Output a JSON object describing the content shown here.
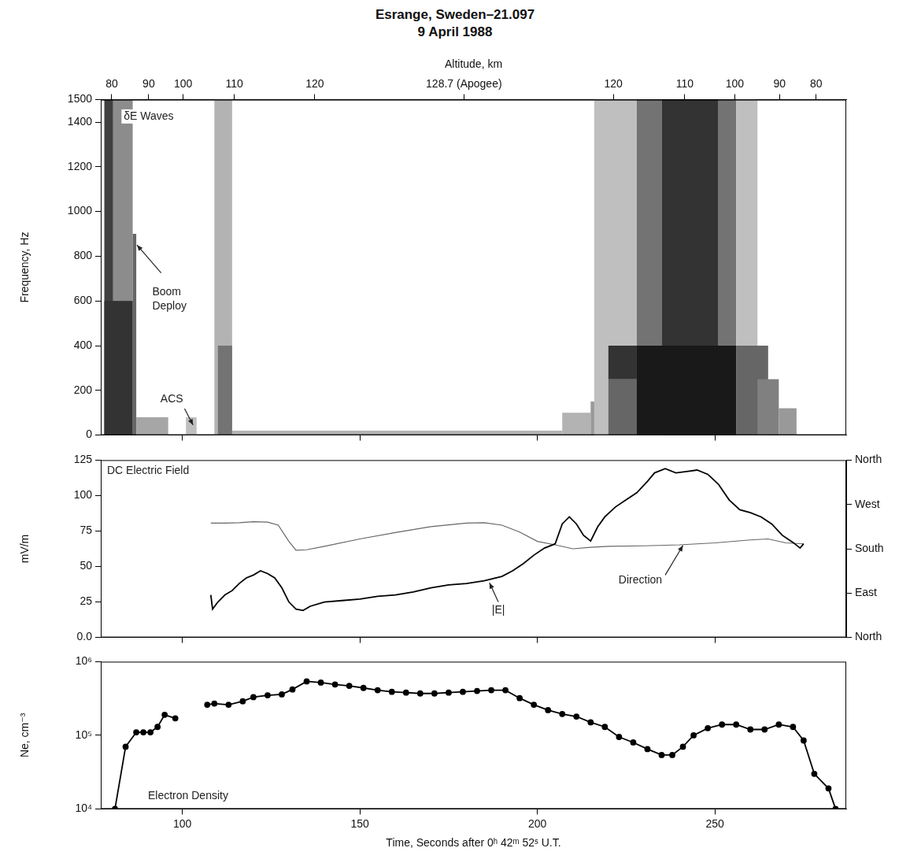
{
  "title": "Esrange, Sweden–21.097",
  "subtitle": "9 April 1988",
  "chart_data": [
    {
      "type": "spectrogram",
      "y_label": "Frequency, Hz",
      "x2_label": "Altitude, km",
      "xlim": [
        77,
        287
      ],
      "xticks": [
        100,
        150,
        200,
        250
      ],
      "x2lim": [
        77,
        287
      ],
      "x2ticks": [
        {
          "value": 80.1,
          "label": "80"
        },
        {
          "value": 90.5,
          "label": "90"
        },
        {
          "value": 100.2,
          "label": "100"
        },
        {
          "value": 114.6,
          "label": "110"
        },
        {
          "value": 137.3,
          "label": "120"
        },
        {
          "value": 179.3,
          "label": "128.7 (Apogee)"
        },
        {
          "value": 221.4,
          "label": "120"
        },
        {
          "value": 241.5,
          "label": "110"
        },
        {
          "value": 255.6,
          "label": "100"
        },
        {
          "value": 268.2,
          "label": "90"
        },
        {
          "value": 278.5,
          "label": "80"
        }
      ],
      "ylim": [
        0,
        1500
      ],
      "yticks": [
        0,
        200,
        400,
        600,
        800,
        1000,
        1200,
        1400,
        1500
      ],
      "grid": false,
      "tick_labels": "y",
      "annotations": [
        "δE Waves",
        "Boom Deploy",
        "ACS"
      ],
      "cells": [
        {
          "x": [
            78,
            80.5
          ],
          "y": [
            0,
            1500
          ],
          "level": 0.75
        },
        {
          "x": [
            80.5,
            86
          ],
          "y": [
            0,
            1500
          ],
          "level": 0.45
        },
        {
          "x": [
            78,
            86
          ],
          "y": [
            0,
            600
          ],
          "level": 0.8
        },
        {
          "x": [
            86,
            87
          ],
          "y": [
            0,
            900
          ],
          "level": 0.6
        },
        {
          "x": [
            87,
            96
          ],
          "y": [
            0,
            80
          ],
          "level": 0.35
        },
        {
          "x": [
            101,
            104
          ],
          "y": [
            0,
            80
          ],
          "level": 0.25
        },
        {
          "x": [
            109,
            114
          ],
          "y": [
            0,
            1500
          ],
          "level": 0.3
        },
        {
          "x": [
            110,
            114
          ],
          "y": [
            0,
            400
          ],
          "level": 0.55
        },
        {
          "x": [
            114,
            207
          ],
          "y": [
            0,
            20
          ],
          "level": 0.3
        },
        {
          "x": [
            207,
            215
          ],
          "y": [
            0,
            100
          ],
          "level": 0.3
        },
        {
          "x": [
            215,
            220
          ],
          "y": [
            0,
            150
          ],
          "level": 0.4
        },
        {
          "x": [
            216,
            228
          ],
          "y": [
            0,
            1500
          ],
          "level": 0.25
        },
        {
          "x": [
            228,
            235
          ],
          "y": [
            0,
            1500
          ],
          "level": 0.55
        },
        {
          "x": [
            235,
            251
          ],
          "y": [
            0,
            1500
          ],
          "level": 0.8
        },
        {
          "x": [
            251,
            256
          ],
          "y": [
            0,
            1500
          ],
          "level": 0.55
        },
        {
          "x": [
            256,
            262
          ],
          "y": [
            0,
            1500
          ],
          "level": 0.25
        },
        {
          "x": [
            220,
            228
          ],
          "y": [
            0,
            250
          ],
          "level": 0.6
        },
        {
          "x": [
            220,
            228
          ],
          "y": [
            250,
            400
          ],
          "level": 0.8
        },
        {
          "x": [
            228,
            256
          ],
          "y": [
            0,
            400
          ],
          "level": 0.9
        },
        {
          "x": [
            256,
            265
          ],
          "y": [
            0,
            400
          ],
          "level": 0.6
        },
        {
          "x": [
            262,
            268
          ],
          "y": [
            0,
            250
          ],
          "level": 0.5
        },
        {
          "x": [
            268,
            273
          ],
          "y": [
            0,
            120
          ],
          "level": 0.4
        }
      ]
    },
    {
      "type": "line",
      "title": "DC Electric Field",
      "y_label": "mV/m",
      "xlim": [
        77,
        287
      ],
      "xticks": [
        100,
        150,
        200,
        250
      ],
      "ylim": [
        0,
        125
      ],
      "yticks": [
        {
          "value": 0,
          "label": "0.0"
        },
        25,
        50,
        75,
        100,
        125
      ],
      "y2lim": [
        0,
        360
      ],
      "y2ticks": [
        {
          "value": 0,
          "label": "North"
        },
        {
          "value": 90,
          "label": "East"
        },
        {
          "value": 180,
          "label": "South"
        },
        {
          "value": 270,
          "label": "West"
        },
        {
          "value": 360,
          "label": "North"
        }
      ],
      "grid": false,
      "tick_labels": "y",
      "series": [
        {
          "name": "|E|",
          "color": "#000000",
          "x": [
            108,
            108.5,
            110,
            112,
            114,
            116,
            118,
            120,
            122,
            124,
            126,
            128,
            130,
            132,
            134,
            136,
            140,
            145,
            150,
            155,
            160,
            165,
            170,
            175,
            180,
            185,
            190,
            193,
            196,
            199,
            202,
            205,
            207,
            209,
            211,
            213,
            215,
            217,
            219,
            222,
            225,
            228,
            231,
            233,
            236,
            239,
            242,
            245,
            248,
            251,
            254,
            257,
            260,
            263,
            266,
            269,
            272,
            274,
            275
          ],
          "values": [
            30,
            20,
            25,
            30,
            33,
            38,
            42,
            44,
            47,
            45,
            42,
            35,
            25,
            20,
            19,
            22,
            25,
            26,
            27,
            29,
            30,
            32,
            35,
            37,
            38,
            40,
            43,
            47,
            52,
            58,
            63,
            66,
            80,
            85,
            80,
            72,
            68,
            78,
            85,
            92,
            97,
            102,
            110,
            116,
            119,
            116,
            117,
            118,
            115,
            108,
            97,
            90,
            88,
            85,
            80,
            72,
            67,
            63,
            66
          ]
        },
        {
          "name": "Direction",
          "color": "#666666",
          "axis": "y2",
          "x": [
            108,
            112,
            116,
            120,
            124,
            127,
            130,
            132,
            135,
            140,
            150,
            160,
            170,
            180,
            185,
            190,
            195,
            200,
            205,
            210,
            215,
            220,
            230,
            240,
            250,
            260,
            265,
            270,
            275
          ],
          "values": [
            232,
            232,
            233,
            235,
            234,
            228,
            195,
            177,
            178,
            185,
            200,
            213,
            225,
            232,
            233,
            228,
            214,
            195,
            188,
            180,
            183,
            185,
            186,
            188,
            192,
            198,
            200,
            192,
            190
          ]
        }
      ]
    },
    {
      "type": "line",
      "title": "Electron Density",
      "y_label": "Ne, cm⁻³",
      "x_label": "Time, Seconds after 0ʰ 42ᵐ 52ˢ U.T.",
      "log": "y",
      "xlim": [
        77,
        287
      ],
      "xticks": [
        100,
        150,
        200,
        250
      ],
      "ylim": [
        10000,
        1000000
      ],
      "yticks": [
        {
          "value": 10000,
          "label": "10⁴"
        },
        {
          "value": 100000,
          "label": "10⁵"
        },
        {
          "value": 1000000,
          "label": "10⁶"
        }
      ],
      "grid": false,
      "marker": "circle",
      "color": "#000000",
      "x": [
        81,
        84,
        87,
        89,
        91,
        93,
        95,
        98,
        103,
        107,
        109,
        113,
        117,
        120,
        124,
        128,
        131,
        135,
        139,
        143,
        147,
        151,
        155,
        159,
        163,
        167,
        171,
        175,
        179,
        183,
        187,
        191,
        195,
        199,
        203,
        207,
        211,
        215,
        219,
        223,
        227,
        231,
        235,
        238,
        241,
        244,
        248,
        252,
        256,
        260,
        264,
        268,
        272,
        275,
        278,
        282,
        284
      ],
      "values": [
        10000,
        70000,
        110000,
        110000,
        110000,
        130000,
        190000,
        170000,
        null,
        260000,
        270000,
        260000,
        290000,
        330000,
        350000,
        360000,
        420000,
        540000,
        520000,
        490000,
        470000,
        440000,
        410000,
        390000,
        380000,
        370000,
        370000,
        380000,
        390000,
        400000,
        410000,
        410000,
        320000,
        260000,
        220000,
        195000,
        180000,
        150000,
        130000,
        95000,
        80000,
        65000,
        54000,
        54000,
        70000,
        100000,
        125000,
        140000,
        140000,
        120000,
        120000,
        140000,
        130000,
        85000,
        30000,
        19000,
        10000
      ]
    }
  ]
}
